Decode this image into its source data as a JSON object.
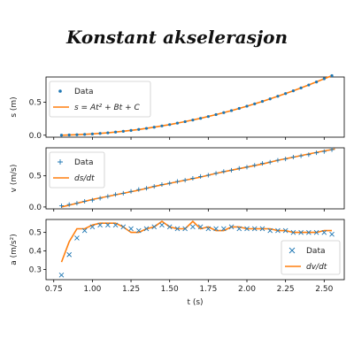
{
  "title": "Konstant akselerasjon",
  "colors": {
    "data": "#1f77b4",
    "fit": "#ff7f0e",
    "axes": "#000000",
    "legend_border": "#cccccc"
  },
  "chart_data": [
    {
      "type": "scatter",
      "ylabel": "s (m)",
      "xlim": [
        0.7,
        2.63
      ],
      "ylim": [
        -0.03,
        0.88
      ],
      "yticks": [
        0.0,
        0.5
      ],
      "ytick_labels": [
        "0.0",
        "0.5"
      ],
      "marker": "dot",
      "legend_position": "upper left",
      "series": [
        {
          "name": "Data",
          "kind": "points",
          "x": [
            0.8,
            0.85,
            0.9,
            0.95,
            1.0,
            1.05,
            1.1,
            1.15,
            1.2,
            1.25,
            1.3,
            1.35,
            1.4,
            1.45,
            1.5,
            1.55,
            1.6,
            1.65,
            1.7,
            1.75,
            1.8,
            1.85,
            1.9,
            1.95,
            2.0,
            2.05,
            2.1,
            2.15,
            2.2,
            2.25,
            2.3,
            2.35,
            2.4,
            2.45,
            2.5,
            2.55
          ],
          "y": [
            0.0,
            0.003,
            0.007,
            0.012,
            0.019,
            0.027,
            0.036,
            0.047,
            0.059,
            0.072,
            0.087,
            0.103,
            0.121,
            0.14,
            0.16,
            0.182,
            0.205,
            0.229,
            0.255,
            0.282,
            0.311,
            0.341,
            0.372,
            0.405,
            0.439,
            0.474,
            0.511,
            0.549,
            0.589,
            0.629,
            0.671,
            0.715,
            0.759,
            0.805,
            0.853,
            0.9
          ]
        },
        {
          "name": "s = At² + Bt + C",
          "kind": "line",
          "x": [
            0.8,
            0.9,
            1.0,
            1.1,
            1.2,
            1.3,
            1.4,
            1.5,
            1.6,
            1.7,
            1.8,
            1.9,
            2.0,
            2.1,
            2.2,
            2.3,
            2.4,
            2.5,
            2.55
          ],
          "y": [
            0.0,
            0.007,
            0.019,
            0.036,
            0.059,
            0.087,
            0.121,
            0.16,
            0.205,
            0.255,
            0.311,
            0.372,
            0.439,
            0.511,
            0.589,
            0.671,
            0.759,
            0.853,
            0.9
          ]
        }
      ]
    },
    {
      "type": "scatter",
      "ylabel": "v (m/s)",
      "xlim": [
        0.7,
        2.63
      ],
      "ylim": [
        -0.03,
        0.95
      ],
      "yticks": [
        0.0,
        0.5
      ],
      "ytick_labels": [
        "0.0",
        "0.5"
      ],
      "marker": "plus",
      "legend_position": "upper left",
      "series": [
        {
          "name": "Data",
          "kind": "points",
          "x": [
            0.8,
            0.85,
            0.9,
            0.95,
            1.0,
            1.05,
            1.1,
            1.15,
            1.2,
            1.25,
            1.3,
            1.35,
            1.4,
            1.45,
            1.5,
            1.55,
            1.6,
            1.65,
            1.7,
            1.75,
            1.8,
            1.85,
            1.9,
            1.95,
            2.0,
            2.05,
            2.1,
            2.15,
            2.2,
            2.25,
            2.3,
            2.35,
            2.4,
            2.45,
            2.5,
            2.55
          ],
          "y": [
            0.02,
            0.04,
            0.06,
            0.09,
            0.11,
            0.14,
            0.17,
            0.2,
            0.22,
            0.25,
            0.28,
            0.3,
            0.33,
            0.36,
            0.38,
            0.41,
            0.43,
            0.46,
            0.49,
            0.51,
            0.54,
            0.57,
            0.59,
            0.62,
            0.64,
            0.67,
            0.7,
            0.72,
            0.75,
            0.77,
            0.8,
            0.82,
            0.84,
            0.87,
            0.89,
            0.92
          ]
        },
        {
          "name": "ds/dt",
          "kind": "line",
          "x": [
            0.8,
            0.9,
            1.0,
            1.1,
            1.2,
            1.3,
            1.4,
            1.5,
            1.6,
            1.7,
            1.8,
            1.9,
            2.0,
            2.1,
            2.2,
            2.3,
            2.4,
            2.5,
            2.57
          ],
          "y": [
            0.0,
            0.06,
            0.12,
            0.17,
            0.22,
            0.27,
            0.33,
            0.38,
            0.43,
            0.48,
            0.54,
            0.59,
            0.64,
            0.69,
            0.75,
            0.8,
            0.85,
            0.9,
            0.93
          ]
        }
      ]
    },
    {
      "type": "scatter",
      "ylabel": "a (m/s²)",
      "xlabel": "t (s)",
      "xlim": [
        0.7,
        2.63
      ],
      "ylim": [
        0.245,
        0.57
      ],
      "yticks": [
        0.3,
        0.4,
        0.5
      ],
      "ytick_labels": [
        "0.3",
        "0.4",
        "0.5"
      ],
      "xticks": [
        0.75,
        1.0,
        1.25,
        1.5,
        1.75,
        2.0,
        2.25,
        2.5
      ],
      "xtick_labels": [
        "0.75",
        "1.00",
        "1.25",
        "1.50",
        "1.75",
        "2.00",
        "2.25",
        "2.50"
      ],
      "marker": "x",
      "legend_position": "lower right",
      "series": [
        {
          "name": "Data",
          "kind": "points",
          "x": [
            0.8,
            0.85,
            0.9,
            0.95,
            1.0,
            1.05,
            1.1,
            1.15,
            1.2,
            1.25,
            1.3,
            1.35,
            1.4,
            1.45,
            1.5,
            1.55,
            1.6,
            1.65,
            1.7,
            1.75,
            1.8,
            1.85,
            1.9,
            1.95,
            2.0,
            2.05,
            2.1,
            2.15,
            2.2,
            2.25,
            2.3,
            2.35,
            2.4,
            2.45,
            2.5,
            2.55
          ],
          "y": [
            0.27,
            0.38,
            0.47,
            0.51,
            0.53,
            0.54,
            0.54,
            0.54,
            0.53,
            0.52,
            0.51,
            0.52,
            0.53,
            0.54,
            0.53,
            0.52,
            0.52,
            0.53,
            0.53,
            0.52,
            0.52,
            0.52,
            0.53,
            0.52,
            0.52,
            0.52,
            0.52,
            0.51,
            0.51,
            0.51,
            0.5,
            0.5,
            0.5,
            0.5,
            0.5,
            0.49
          ]
        },
        {
          "name": "dv/dt",
          "kind": "line",
          "x": [
            0.8,
            0.85,
            0.9,
            0.95,
            1.0,
            1.05,
            1.1,
            1.15,
            1.2,
            1.25,
            1.3,
            1.35,
            1.4,
            1.45,
            1.5,
            1.55,
            1.6,
            1.65,
            1.7,
            1.75,
            1.8,
            1.85,
            1.9,
            1.95,
            2.0,
            2.05,
            2.1,
            2.15,
            2.2,
            2.25,
            2.3,
            2.35,
            2.4,
            2.45,
            2.5,
            2.55
          ],
          "y": [
            0.34,
            0.45,
            0.52,
            0.52,
            0.54,
            0.55,
            0.55,
            0.55,
            0.53,
            0.5,
            0.5,
            0.52,
            0.53,
            0.56,
            0.53,
            0.52,
            0.52,
            0.56,
            0.52,
            0.53,
            0.51,
            0.51,
            0.53,
            0.53,
            0.52,
            0.52,
            0.52,
            0.52,
            0.51,
            0.51,
            0.5,
            0.5,
            0.5,
            0.5,
            0.51,
            0.51
          ]
        }
      ]
    }
  ]
}
